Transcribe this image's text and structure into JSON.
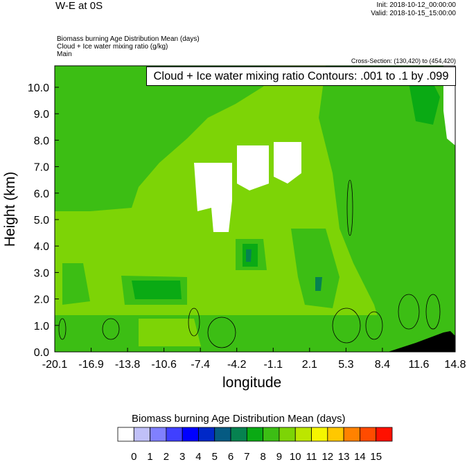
{
  "header": {
    "title": "W-E at 0S",
    "init": "Init: 2018-10-12_00:00:00",
    "valid": "Valid: 2018-10-15_15:00:00",
    "fields": [
      "Biomass burning Age Distribution Mean   (days)",
      "Cloud + Ice water mixing ratio   (g/kg)",
      "Main"
    ],
    "cross_section": "Cross-Section: (130,420) to (454,420)",
    "contour_label": "Cloud + Ice water mixing ratio Contours: .001 to .1 by .099"
  },
  "chart_data": {
    "type": "heatmap",
    "title": "W-E at 0S",
    "xlabel": "longitude",
    "ylabel": "Height (km)",
    "xticks": [
      "-20.1",
      "-16.9",
      "-13.8",
      "-10.6",
      "-7.4",
      "-4.2",
      "-1.1",
      "2.1",
      "5.3",
      "8.4",
      "11.6",
      "14.8"
    ],
    "yticks": [
      "0.0",
      "1.0",
      "2.0",
      "3.0",
      "4.0",
      "5.0",
      "6.0",
      "7.0",
      "8.0",
      "9.0",
      "10.0"
    ],
    "ylim": [
      0,
      10.8
    ],
    "colorbar": {
      "title": "Biomass burning Age Distribution Mean  (days)",
      "labels": [
        "0",
        "1",
        "2",
        "3",
        "4",
        "5",
        "6",
        "7",
        "8",
        "9",
        "10",
        "11",
        "12",
        "13",
        "14",
        "15"
      ],
      "colors": [
        "#ffffff",
        "#c0c0f8",
        "#8080ff",
        "#4040ff",
        "#0000ff",
        "#0028c8",
        "#055a82",
        "#068250",
        "#0aaa14",
        "#3cbe14",
        "#7dd406",
        "#bce600",
        "#f5f500",
        "#ffc800",
        "#ff8200",
        "#ff4b00",
        "#ff1000"
      ]
    },
    "dominant_values_days": {
      "upper_left": "8-9",
      "mid_troposphere": "9-10",
      "plumes": "7-8"
    }
  }
}
